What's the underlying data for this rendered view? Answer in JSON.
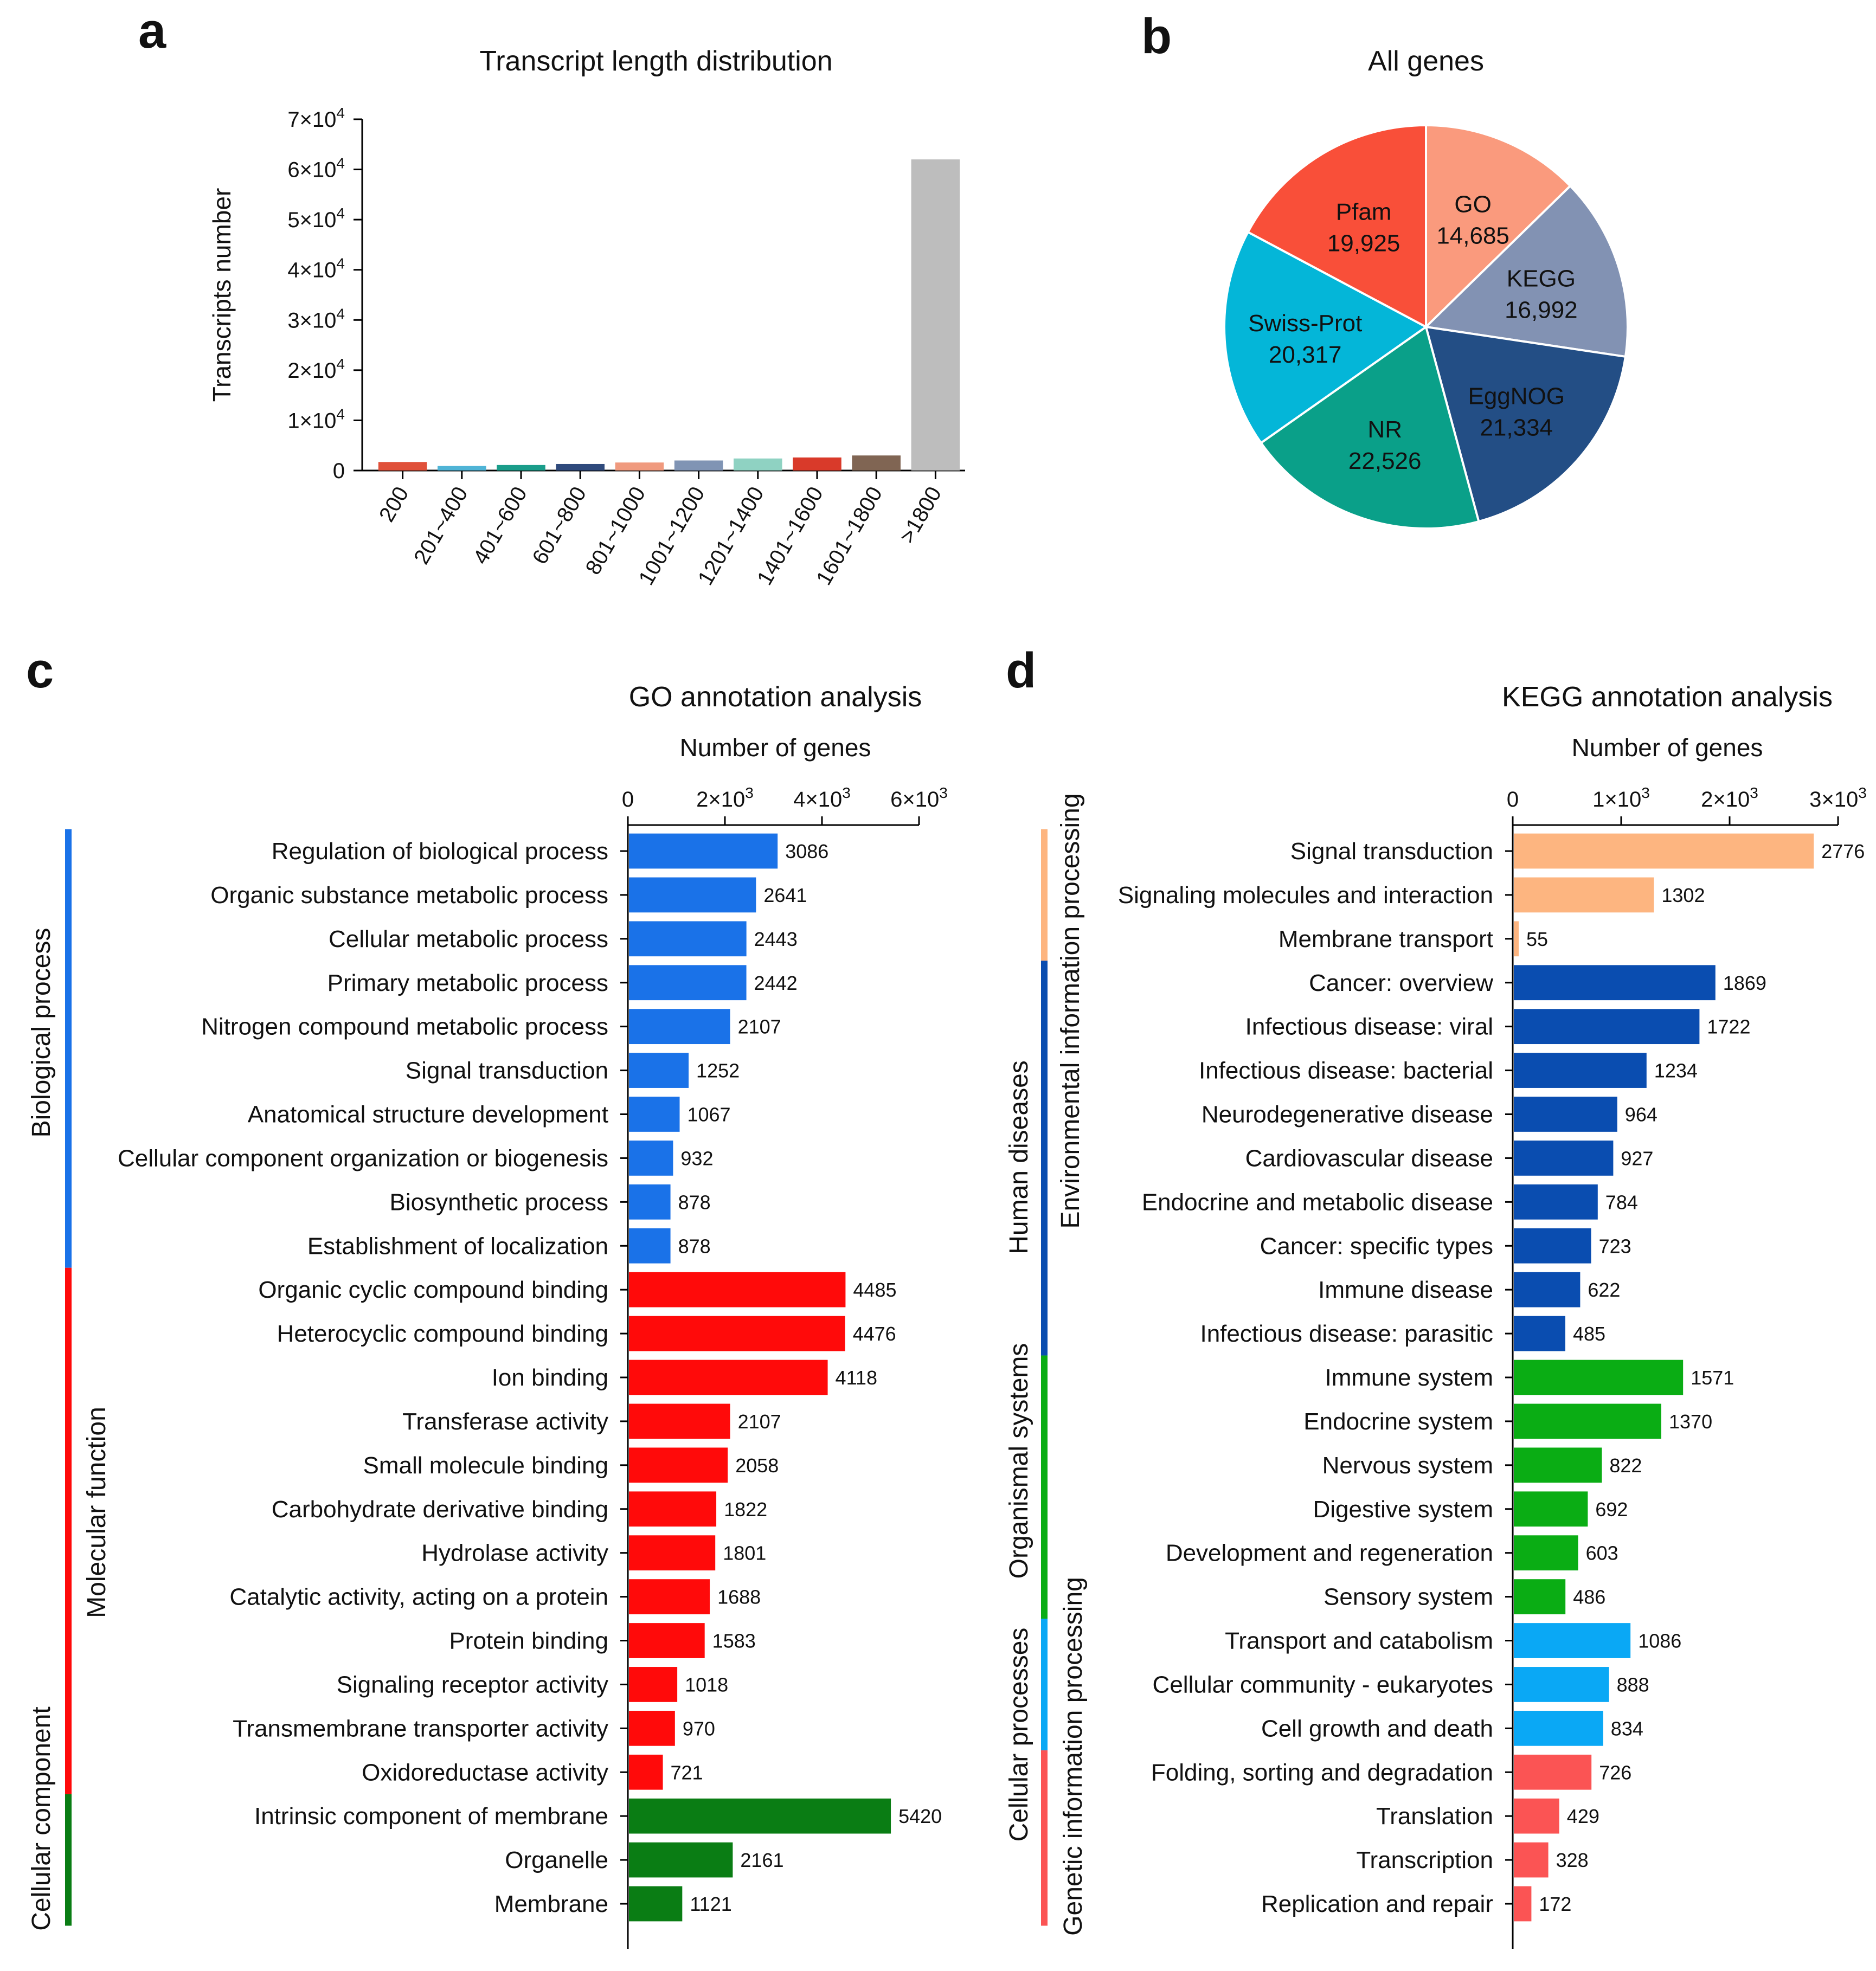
{
  "panels": {
    "a": "a",
    "b": "b",
    "c": "c",
    "d": "d"
  },
  "chart_data": [
    {
      "id": "a",
      "type": "bar",
      "title": "Transcript length distribution",
      "xlabel": "",
      "ylabel": "Transcripts number",
      "ylim": [
        0,
        70000
      ],
      "y_ticks": [
        {
          "value": 0,
          "base": "0",
          "exp": ""
        },
        {
          "value": 10000,
          "base": "1×10",
          "exp": "4"
        },
        {
          "value": 20000,
          "base": "2×10",
          "exp": "4"
        },
        {
          "value": 30000,
          "base": "3×10",
          "exp": "4"
        },
        {
          "value": 40000,
          "base": "4×10",
          "exp": "4"
        },
        {
          "value": 50000,
          "base": "5×10",
          "exp": "4"
        },
        {
          "value": 60000,
          "base": "6×10",
          "exp": "4"
        },
        {
          "value": 70000,
          "base": "7×10",
          "exp": "4"
        }
      ],
      "categories": [
        "200",
        "201~400",
        "401~600",
        "601~800",
        "801~1000",
        "1001~1200",
        "1201~1400",
        "1401~1600",
        "1601~1800",
        ">1800"
      ],
      "values": [
        1700,
        900,
        1100,
        1300,
        1600,
        2000,
        2400,
        2600,
        3000,
        62000
      ],
      "colors": [
        "#e0503a",
        "#4fb4d6",
        "#1a9d8a",
        "#2f4a7c",
        "#f09a7e",
        "#8094b4",
        "#8fd2c2",
        "#d93a2a",
        "#806553",
        "#bdbdbd"
      ]
    },
    {
      "id": "b",
      "type": "pie",
      "title": "All genes",
      "slices": [
        {
          "label": "GO",
          "value": 14685,
          "display": "14,685",
          "color": "#fa9a7d"
        },
        {
          "label": "KEGG",
          "value": 16992,
          "display": "16,992",
          "color": "#8292b3"
        },
        {
          "label": "EggNOG",
          "value": 21334,
          "display": "21,334",
          "color": "#234e85"
        },
        {
          "label": "NR",
          "value": 22526,
          "display": "22,526",
          "color": "#0aa089"
        },
        {
          "label": "Swiss-Prot",
          "value": 20317,
          "display": "20,317",
          "color": "#04b6d8"
        },
        {
          "label": "Pfam",
          "value": 19925,
          "display": "19,925",
          "color": "#f94f39"
        }
      ]
    },
    {
      "id": "c",
      "type": "bar",
      "orientation": "horizontal",
      "title": "GO annotation analysis",
      "xlabel": "Number of  genes",
      "xlim": [
        0,
        6000
      ],
      "x_ticks": [
        {
          "value": 0,
          "base": "0",
          "exp": ""
        },
        {
          "value": 2000,
          "base": "2×10",
          "exp": "3"
        },
        {
          "value": 4000,
          "base": "4×10",
          "exp": "3"
        },
        {
          "value": 6000,
          "base": "6×10",
          "exp": "3"
        }
      ],
      "groups": [
        {
          "name": "Biological process",
          "color": "#1a72e8",
          "items": [
            {
              "label": "Regulation of biological process",
              "value": 3086
            },
            {
              "label": "Organic substance metabolic process",
              "value": 2641
            },
            {
              "label": "Cellular metabolic process",
              "value": 2443
            },
            {
              "label": "Primary metabolic process",
              "value": 2442
            },
            {
              "label": "Nitrogen compound metabolic process",
              "value": 2107
            },
            {
              "label": "Signal transduction",
              "value": 1252
            },
            {
              "label": "Anatomical structure development",
              "value": 1067
            },
            {
              "label": "Cellular component organization or biogenesis",
              "value": 932
            },
            {
              "label": "Biosynthetic process",
              "value": 878
            },
            {
              "label": "Establishment of localization",
              "value": 878
            }
          ]
        },
        {
          "name": "Molecular function",
          "color": "#ff0a0a",
          "items": [
            {
              "label": "Organic cyclic compound binding",
              "value": 4485
            },
            {
              "label": "Heterocyclic compound binding",
              "value": 4476
            },
            {
              "label": "Ion binding",
              "value": 4118
            },
            {
              "label": "Transferase activity",
              "value": 2107
            },
            {
              "label": "Small molecule binding",
              "value": 2058
            },
            {
              "label": "Carbohydrate derivative binding",
              "value": 1822
            },
            {
              "label": "Hydrolase activity",
              "value": 1801
            },
            {
              "label": "Catalytic activity, acting on a protein",
              "value": 1688
            },
            {
              "label": "Protein binding",
              "value": 1583
            },
            {
              "label": "Signaling receptor activity",
              "value": 1018
            },
            {
              "label": "Transmembrane transporter activity",
              "value": 970
            },
            {
              "label": "Oxidoreductase activity",
              "value": 721
            }
          ]
        },
        {
          "name": "Cellular component",
          "color": "#0a7d14",
          "items": [
            {
              "label": "Intrinsic component of membrane",
              "value": 5420
            },
            {
              "label": "Organelle",
              "value": 2161
            },
            {
              "label": "Membrane",
              "value": 1121
            }
          ]
        }
      ]
    },
    {
      "id": "d",
      "type": "bar",
      "orientation": "horizontal",
      "title": "KEGG annotation analysis",
      "xlabel": "Number of  genes",
      "xlim": [
        0,
        3000
      ],
      "x_ticks": [
        {
          "value": 0,
          "base": "0",
          "exp": ""
        },
        {
          "value": 1000,
          "base": "1×10",
          "exp": "3"
        },
        {
          "value": 2000,
          "base": "2×10",
          "exp": "3"
        },
        {
          "value": 3000,
          "base": "3×10",
          "exp": "3"
        }
      ],
      "groups": [
        {
          "name": "Environmental information processing",
          "color": "#fdb580",
          "items": [
            {
              "label": "Signal transduction",
              "value": 2776
            },
            {
              "label": "Signaling molecules and interaction",
              "value": 1302
            },
            {
              "label": "Membrane transport",
              "value": 55
            }
          ]
        },
        {
          "name": "Human diseases",
          "color": "#0a4db0",
          "items": [
            {
              "label": "Cancer: overview",
              "value": 1869
            },
            {
              "label": "Infectious disease: viral",
              "value": 1722
            },
            {
              "label": "Infectious disease: bacterial",
              "value": 1234
            },
            {
              "label": "Neurodegenerative disease",
              "value": 964
            },
            {
              "label": "Cardiovascular disease",
              "value": 927
            },
            {
              "label": "Endocrine and metabolic disease",
              "value": 784
            },
            {
              "label": "Cancer: specific types",
              "value": 723
            },
            {
              "label": "Immune disease",
              "value": 622
            },
            {
              "label": "Infectious disease: parasitic",
              "value": 485
            }
          ]
        },
        {
          "name": "Organismal systems",
          "color": "#0aad14",
          "items": [
            {
              "label": "Immune system",
              "value": 1571
            },
            {
              "label": "Endocrine system",
              "value": 1370
            },
            {
              "label": "Nervous system",
              "value": 822
            },
            {
              "label": "Digestive system",
              "value": 692
            },
            {
              "label": "Development and regeneration",
              "value": 603
            },
            {
              "label": "Sensory system",
              "value": 486
            }
          ]
        },
        {
          "name": "Cellular processes",
          "color": "#0aa8f5",
          "items": [
            {
              "label": "Transport and catabolism",
              "value": 1086
            },
            {
              "label": "Cellular community - eukaryotes",
              "value": 888
            },
            {
              "label": "Cell growth and death",
              "value": 834
            }
          ]
        },
        {
          "name": "Genetic information processing",
          "color": "#fb5454",
          "items": [
            {
              "label": "Folding, sorting and degradation",
              "value": 726
            },
            {
              "label": "Translation",
              "value": 429
            },
            {
              "label": "Transcription",
              "value": 328
            },
            {
              "label": "Replication and repair",
              "value": 172
            }
          ]
        }
      ]
    }
  ]
}
